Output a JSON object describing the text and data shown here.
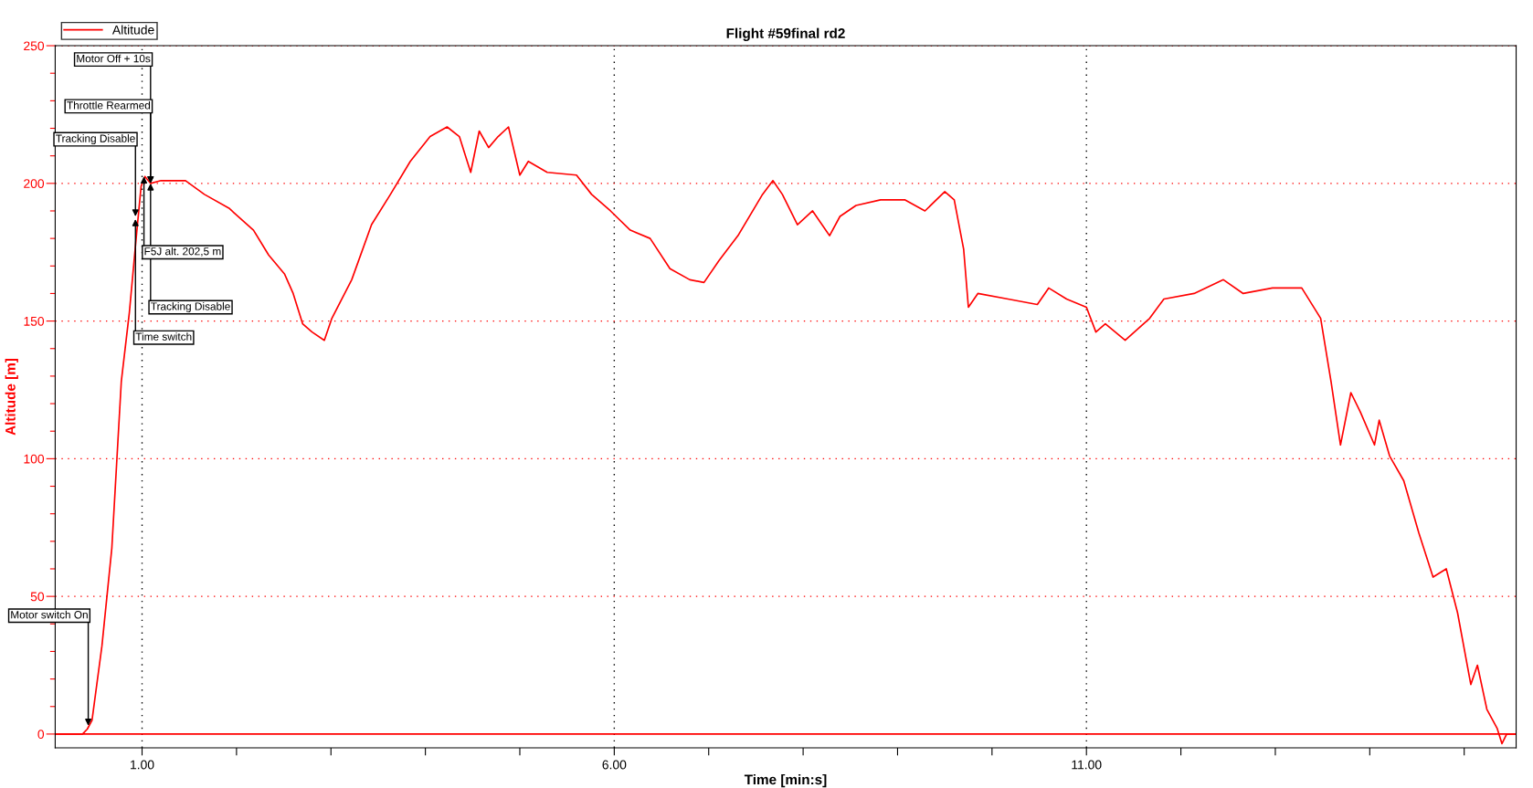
{
  "chart_data": {
    "type": "line",
    "title": "Flight #59final rd2",
    "xlabel": "Time [min:s]",
    "ylabel": "Altitude [m]",
    "series": [
      {
        "name": "Altitude",
        "color": "#ff0000",
        "x": [
          0.08,
          0.37,
          0.42,
          0.47,
          0.575,
          0.68,
          0.78,
          0.865,
          0.94,
          0.99,
          1.03,
          1.09,
          1.2,
          1.46,
          1.66,
          1.92,
          2.18,
          2.34,
          2.51,
          2.6,
          2.7,
          2.8,
          2.93,
          3.01,
          3.22,
          3.43,
          3.63,
          3.84,
          4.05,
          4.23,
          4.36,
          4.48,
          4.57,
          4.67,
          4.77,
          4.88,
          5.0,
          5.09,
          5.29,
          5.6,
          5.76,
          5.96,
          6.17,
          6.38,
          6.59,
          6.8,
          6.95,
          7.11,
          7.31,
          7.57,
          7.68,
          7.78,
          7.94,
          8.1,
          8.28,
          8.39,
          8.56,
          8.82,
          9.08,
          9.29,
          9.5,
          9.6,
          9.7,
          9.75,
          9.85,
          10.17,
          10.48,
          10.6,
          10.79,
          11.0,
          11.1,
          11.2,
          11.41,
          11.67,
          11.82,
          12.14,
          12.45,
          12.66,
          12.97,
          13.28,
          13.48,
          13.59,
          13.69,
          13.8,
          13.9,
          14.05,
          14.1,
          14.21,
          14.36,
          14.52,
          14.67,
          14.81,
          14.93,
          15.07,
          15.14,
          15.24,
          15.35,
          15.4,
          15.45,
          15.55
        ],
        "values": [
          0,
          0,
          1.8,
          5,
          32,
          67.6,
          128,
          153,
          181,
          199,
          202.5,
          200,
          201,
          201,
          196,
          191,
          183,
          174,
          167,
          160,
          149,
          146,
          143,
          151,
          165,
          185,
          196,
          208,
          217,
          220.5,
          217,
          204,
          219,
          213,
          217,
          220.5,
          203,
          208,
          204,
          203,
          196,
          190,
          183,
          180,
          169,
          165,
          164,
          172,
          181,
          196,
          201,
          196,
          185,
          190,
          181,
          188,
          192,
          194,
          194,
          190,
          197,
          194,
          176,
          155,
          160,
          158,
          156,
          162,
          158,
          155,
          146,
          149,
          143,
          151,
          158,
          160,
          165,
          160,
          162,
          162,
          151,
          128,
          105,
          124,
          117,
          105,
          114,
          101,
          92,
          73,
          57,
          60,
          44,
          18,
          25,
          9,
          2,
          -3.5,
          0,
          0
        ]
      }
    ],
    "xlim": [
      0.08,
      15.55
    ],
    "xticks": [
      {
        "value": 1,
        "label": "1.00"
      },
      {
        "value": 2,
        "label": null
      },
      {
        "value": 3,
        "label": null
      },
      {
        "value": 4,
        "label": null
      },
      {
        "value": 5,
        "label": null
      },
      {
        "value": 6,
        "label": "6.00"
      },
      {
        "value": 7,
        "label": null
      },
      {
        "value": 8,
        "label": null
      },
      {
        "value": 9,
        "label": null
      },
      {
        "value": 10,
        "label": null
      },
      {
        "value": 11,
        "label": "11.00"
      },
      {
        "value": 12,
        "label": null
      },
      {
        "value": 13,
        "label": null
      },
      {
        "value": 14,
        "label": null
      },
      {
        "value": 15,
        "label": null
      }
    ],
    "ylim": [
      -5,
      250
    ],
    "yticks": [
      0,
      {
        "value": 10,
        "label": null
      },
      {
        "value": 20,
        "label": null
      },
      {
        "value": 30,
        "label": null
      },
      {
        "value": 40,
        "label": null
      },
      50,
      {
        "value": 60,
        "label": null
      },
      {
        "value": 70,
        "label": null
      },
      {
        "value": 80,
        "label": null
      },
      {
        "value": 90,
        "label": null
      },
      100,
      {
        "value": 110,
        "label": null
      },
      {
        "value": 120,
        "label": null
      },
      {
        "value": 130,
        "label": null
      },
      {
        "value": 140,
        "label": null
      },
      150,
      {
        "value": 160,
        "label": null
      },
      {
        "value": 170,
        "label": null
      },
      {
        "value": 180,
        "label": null
      },
      {
        "value": 190,
        "label": null
      },
      200,
      {
        "value": 210,
        "label": null
      },
      {
        "value": 220,
        "label": null
      },
      {
        "value": 230,
        "label": null
      },
      {
        "value": 240,
        "label": null
      },
      250
    ],
    "grid": true,
    "legend": "top left",
    "marker": "none",
    "line_style": "solid",
    "ref_lines": [
      {
        "axis": "y",
        "value": 0,
        "color": "#ff0000",
        "line_style": "solid"
      }
    ],
    "annotations": [
      {
        "text": "Motor switch On",
        "x": 0.43,
        "y": 3
      },
      {
        "text": "Tracking Disable",
        "x": 0.93,
        "y": 188
      },
      {
        "text": "Time switch",
        "x": 0.93,
        "y": 187
      },
      {
        "text": "F5J alt. 202,5 m",
        "x": 1.02,
        "y": 202.5
      },
      {
        "text": "Throttle Rearmed",
        "x": 1.09,
        "y": 200
      },
      {
        "text": "Motor Off + 10s",
        "x": 1.09,
        "y": 200
      },
      {
        "text": "Tracking Disable",
        "x": 1.09,
        "y": 200
      }
    ]
  }
}
